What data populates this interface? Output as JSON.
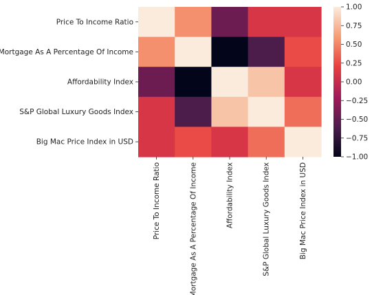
{
  "chart_data": {
    "type": "heatmap",
    "title": "",
    "xlabel": "",
    "ylabel": "",
    "labels": [
      "Price To Income Ratio",
      "Mortgage As A Percentage Of Income",
      "Affordability Index",
      "S&P Global Luxury Goods Index",
      "Big Mac Price Index in USD"
    ],
    "matrix": [
      [
        1.0,
        0.55,
        -0.45,
        0.1,
        0.1
      ],
      [
        0.55,
        1.0,
        -1.0,
        -0.6,
        0.25
      ],
      [
        -0.45,
        -1.0,
        1.0,
        0.8,
        0.1
      ],
      [
        0.1,
        -0.6,
        0.8,
        1.0,
        0.4
      ],
      [
        0.1,
        0.25,
        0.1,
        0.4,
        1.0
      ]
    ],
    "colorbar": {
      "range": [
        -1.0,
        1.0
      ],
      "ticks": [
        "1.00",
        "0.75",
        "0.50",
        "0.25",
        "0.00",
        "−0.25",
        "−0.50",
        "−0.75",
        "−1.00"
      ],
      "tick_values": [
        1.0,
        0.75,
        0.5,
        0.25,
        0.0,
        -0.25,
        -0.5,
        -0.75,
        -1.0
      ],
      "colormap": "rocket",
      "stops": [
        "#03051a",
        "#4c1d4b",
        "#a11a5b",
        "#e83f3f",
        "#f69c73",
        "#faebdd"
      ]
    }
  }
}
